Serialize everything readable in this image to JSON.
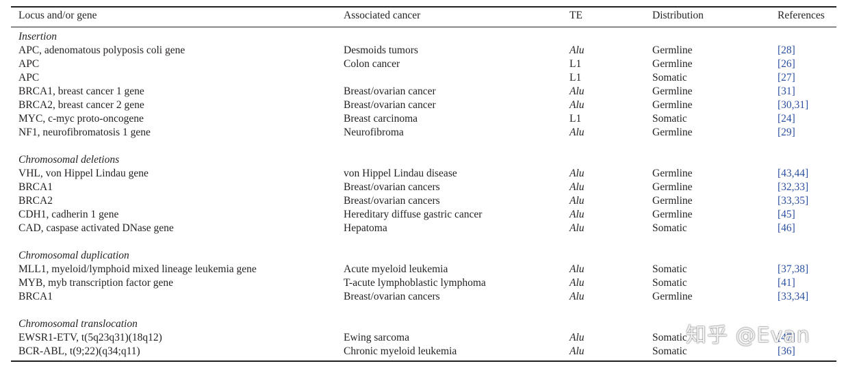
{
  "table": {
    "headers": {
      "locus": "Locus and/or gene",
      "cancer": "Associated cancer",
      "te": "TE",
      "distribution": "Distribution",
      "references": "References"
    },
    "sections": [
      {
        "title": "Insertion",
        "rows": [
          {
            "locus": "APC, adenomatous polyposis coli gene",
            "cancer": "Desmoids tumors",
            "te": "Alu",
            "distribution": "Germline",
            "references": "[28]"
          },
          {
            "locus": "APC",
            "cancer": "Colon cancer",
            "te": "L1",
            "distribution": "Germline",
            "references": "[26]"
          },
          {
            "locus": "APC",
            "cancer": "",
            "te": "L1",
            "distribution": "Somatic",
            "references": "[27]"
          },
          {
            "locus": "BRCA1, breast cancer 1 gene",
            "cancer": "Breast/ovarian cancer",
            "te": "Alu",
            "distribution": "Germline",
            "references": "[31]"
          },
          {
            "locus": "BRCA2, breast cancer 2 gene",
            "cancer": "Breast/ovarian cancer",
            "te": "Alu",
            "distribution": "Germline",
            "references": "[30,31]"
          },
          {
            "locus": "MYC, c-myc proto-oncogene",
            "cancer": "Breast carcinoma",
            "te": "L1",
            "distribution": "Somatic",
            "references": "[24]"
          },
          {
            "locus": "NF1, neurofibromatosis 1 gene",
            "cancer": "Neurofibroma",
            "te": "Alu",
            "distribution": "Germline",
            "references": "[29]"
          }
        ]
      },
      {
        "title": "Chromosomal deletions",
        "rows": [
          {
            "locus": "VHL, von Hippel Lindau gene",
            "cancer": "von Hippel Lindau disease",
            "te": "Alu",
            "distribution": "Germline",
            "references": "[43,44]"
          },
          {
            "locus": "BRCA1",
            "cancer": "Breast/ovarian cancers",
            "te": "Alu",
            "distribution": "Germline",
            "references": "[32,33]"
          },
          {
            "locus": "BRCA2",
            "cancer": "Breast/ovarian cancers",
            "te": "Alu",
            "distribution": "Germline",
            "references": "[33,35]"
          },
          {
            "locus": "CDH1, cadherin 1 gene",
            "cancer": "Hereditary diffuse gastric cancer",
            "te": "Alu",
            "distribution": "Germline",
            "references": "[45]"
          },
          {
            "locus": "CAD, caspase activated DNase gene",
            "cancer": "Hepatoma",
            "te": "Alu",
            "distribution": "Somatic",
            "references": "[46]"
          }
        ]
      },
      {
        "title": "Chromosomal duplication",
        "rows": [
          {
            "locus": "MLL1, myeloid/lymphoid mixed lineage leukemia gene",
            "cancer": "Acute myeloid leukemia",
            "te": "Alu",
            "distribution": "Somatic",
            "references": "[37,38]"
          },
          {
            "locus": "MYB, myb transcription factor gene",
            "cancer": "T-acute lymphoblastic lymphoma",
            "te": "Alu",
            "distribution": "Somatic",
            "references": "[41]"
          },
          {
            "locus": "BRCA1",
            "cancer": "Breast/ovarian cancers",
            "te": "Alu",
            "distribution": "Germline",
            "references": "[33,34]"
          }
        ]
      },
      {
        "title": "Chromosomal translocation",
        "rows": [
          {
            "locus": "EWSR1-ETV, t(5q23q31)(18q12)",
            "cancer": "Ewing sarcoma",
            "te": "Alu",
            "distribution": "Somatic",
            "references": "[47]"
          },
          {
            "locus": "BCR-ABL, t(9;22)(q34;q11)",
            "cancer": "Chronic myeloid leukemia",
            "te": "Alu",
            "distribution": "Somatic",
            "references": "[36]"
          }
        ]
      }
    ]
  },
  "watermark": "知乎 @Evan",
  "colors": {
    "text": "#231f20",
    "link": "#2b4fa1"
  }
}
